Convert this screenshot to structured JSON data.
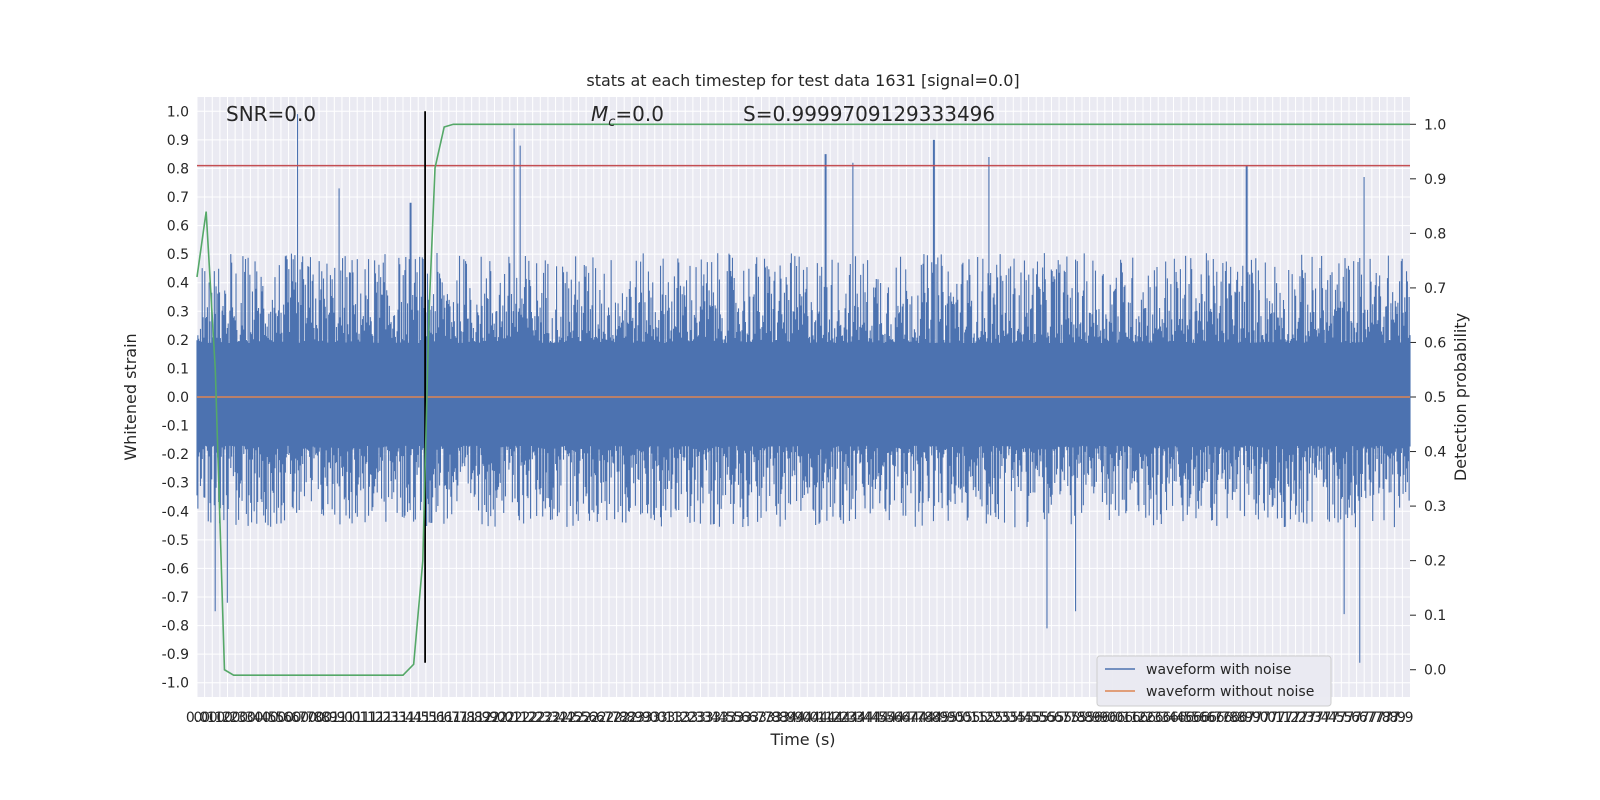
{
  "chart_data": {
    "type": "line",
    "title": "stats at each timestep for test data 1631 [signal=0.0]",
    "xlabel": "Time (s)",
    "ylabel": "Whitened strain",
    "ylabel_right": "Detection probability",
    "xlim": [
      0.0,
      7.95
    ],
    "ylim": [
      -1.05,
      1.05
    ],
    "ylim_right": [
      -0.05,
      1.05
    ],
    "grid": true,
    "legend_position": "lower-right",
    "x_ticks": [
      "0.0",
      "0.1",
      "0.1",
      "0.2",
      "0.2",
      "0.3",
      "0.3",
      "0.4",
      "0.4",
      "0.5",
      "0.5",
      "0.6",
      "0.6",
      "0.7",
      "0.7",
      "0.8",
      "0.8",
      "0.9",
      "0.9",
      "1.0",
      "1.0",
      "1.1",
      "1.1",
      "1.2",
      "1.2",
      "1.3",
      "1.3",
      "1.4",
      "1.4",
      "1.5",
      "1.5",
      "1.6",
      "1.6",
      "1.7",
      "1.7",
      "1.8",
      "1.8",
      "1.9",
      "1.9",
      "2.0",
      "2.0",
      "2.1",
      "2.1",
      "2.2",
      "2.2",
      "2.3",
      "2.3",
      "2.4",
      "2.4",
      "2.5",
      "2.5",
      "2.6",
      "2.6",
      "2.7",
      "2.7",
      "2.8",
      "2.8",
      "2.9",
      "2.9",
      "3.0",
      "3.0",
      "3.1",
      "3.1",
      "3.2",
      "3.2",
      "3.3",
      "3.3",
      "3.4",
      "3.4",
      "3.5",
      "3.5",
      "3.6",
      "3.6",
      "3.7",
      "3.7",
      "3.8",
      "3.8",
      "3.9",
      "3.9",
      "4.0",
      "4.0",
      "4.1",
      "4.1",
      "4.2",
      "4.2",
      "4.3",
      "4.3",
      "4.4",
      "4.4",
      "4.5",
      "4.5",
      "4.6",
      "4.6",
      "4.7",
      "4.7",
      "4.8",
      "4.8",
      "4.9",
      "4.9",
      "5.0",
      "5.0",
      "5.1",
      "5.1",
      "5.2",
      "5.2",
      "5.3",
      "5.3",
      "5.4",
      "5.4",
      "5.5",
      "5.5",
      "5.6",
      "5.6",
      "5.7",
      "5.7",
      "5.8",
      "5.8",
      "5.9",
      "5.9",
      "6.0",
      "6.0",
      "6.1",
      "6.1",
      "6.2",
      "6.2",
      "6.3",
      "6.3",
      "6.4",
      "6.4",
      "6.5",
      "6.5",
      "6.6",
      "6.6",
      "6.7",
      "6.7",
      "6.8",
      "6.8",
      "6.9",
      "6.9",
      "7.0",
      "7.0",
      "7.1",
      "7.1",
      "7.2",
      "7.2",
      "7.3",
      "7.3",
      "7.4",
      "7.4",
      "7.5",
      "7.5",
      "7.6",
      "7.6",
      "7.7",
      "7.7",
      "7.8",
      "7.8",
      "7.9",
      "7.9"
    ],
    "y_ticks": [
      "1.0",
      "0.9",
      "0.8",
      "0.7",
      "0.6",
      "0.5",
      "0.4",
      "0.3",
      "0.2",
      "0.1",
      "0.0",
      "-0.1",
      "-0.2",
      "-0.3",
      "-0.4",
      "-0.5",
      "-0.6",
      "-0.7",
      "-0.8",
      "-0.9",
      "-1.0"
    ],
    "y_ticks_right": [
      "1.0",
      "0.9",
      "0.8",
      "0.7",
      "0.6",
      "0.5",
      "0.4",
      "0.3",
      "0.2",
      "0.1",
      "0.0"
    ],
    "annotations": {
      "snr": "SNR=0.0",
      "mc_symbol": "M",
      "mc_subscript": "c",
      "mc_value": "=0.0",
      "s": "S=0.9999709129333496"
    },
    "threshold": {
      "value": 0.81,
      "color": "#c44e52"
    },
    "marker_line": {
      "x": 1.495,
      "y_range": [
        -0.93,
        1.0
      ],
      "color": "#000000"
    },
    "series": [
      {
        "name": "waveform with noise",
        "color": "#4c72b0",
        "noise_envelope": {
          "typical_upper": 0.42,
          "typical_lower": -0.38,
          "peaks_up": [
            [
              0.66,
              0.99
            ],
            [
              0.93,
              0.73
            ],
            [
              1.4,
              0.68
            ],
            [
              2.08,
              0.94
            ],
            [
              2.12,
              0.88
            ],
            [
              4.12,
              0.85
            ],
            [
              4.3,
              0.82
            ],
            [
              4.83,
              0.9
            ],
            [
              5.19,
              0.84
            ],
            [
              6.88,
              0.81
            ],
            [
              7.65,
              0.77
            ]
          ],
          "peaks_down": [
            [
              0.12,
              -0.75
            ],
            [
              0.2,
              -0.72
            ],
            [
              5.57,
              -0.81
            ],
            [
              5.76,
              -0.75
            ],
            [
              7.52,
              -0.76
            ],
            [
              7.62,
              -0.93
            ]
          ]
        }
      },
      {
        "name": "waveform without noise",
        "color": "#dd8452",
        "values_constant": 0.0
      },
      {
        "name": "",
        "color": "#55a868",
        "axis": "right",
        "x": [
          0.0,
          0.06,
          0.12,
          0.18,
          0.24,
          0.3,
          0.5,
          0.8,
          1.1,
          1.35,
          1.42,
          1.48,
          1.52,
          1.56,
          1.62,
          1.68,
          2.0,
          3.0,
          5.0,
          7.95
        ],
        "values": [
          0.72,
          0.84,
          0.55,
          0.0,
          -0.01,
          -0.01,
          -0.01,
          -0.01,
          -0.01,
          -0.01,
          0.01,
          0.2,
          0.65,
          0.92,
          0.995,
          1.0,
          1.0,
          1.0,
          1.0,
          1.0
        ]
      }
    ]
  }
}
